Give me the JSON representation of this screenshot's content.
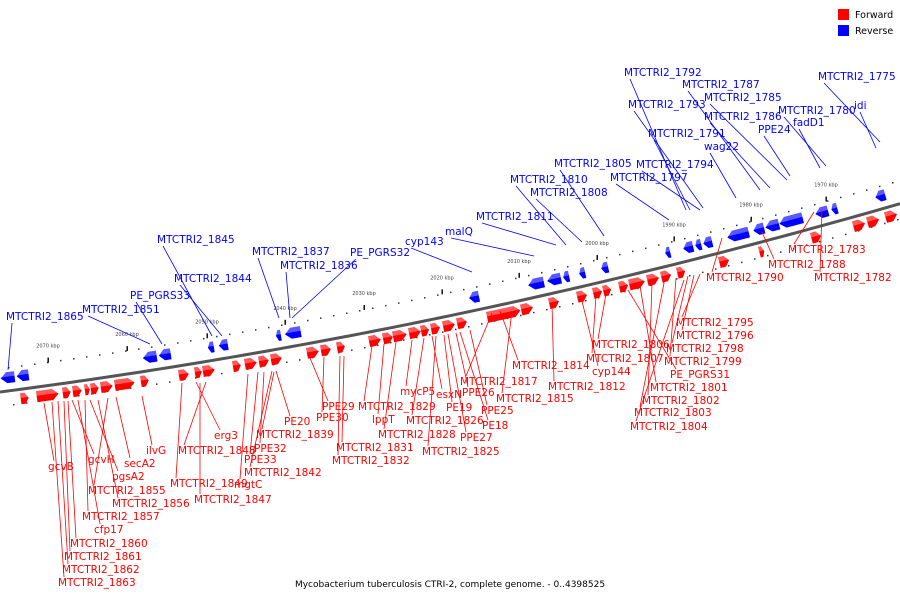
{
  "legend": [
    {
      "label": "Forward",
      "color": "#ff0000"
    },
    {
      "label": "Reverse",
      "color": "#0000ff"
    }
  ],
  "caption": "Mycobacterium tuberculosis CTRI-2, complete genome. - 0..4398525",
  "ticks": [
    "2070 kbp",
    "2060 kbp",
    "2050 kbp",
    "2040 kbp",
    "2030 kbp",
    "2020 kbp",
    "2010 kbp",
    "2000 kbp",
    "1990 kbp",
    "1980 kbp",
    "1970 kbp"
  ],
  "reverse_labels": [
    "MTCTRI2_1865",
    "MTCTRI2_1851",
    "PE_PGRS33",
    "MTCTRI2_1844",
    "MTCTRI2_1845",
    "MTCTRI2_1837",
    "MTCTRI2_1836",
    "PE_PGRS32",
    "cyp143",
    "malQ",
    "MTCTRI2_1811",
    "MTCTRI2_1808",
    "MTCTRI2_1810",
    "MTCTRI2_1805",
    "MTCTRI2_1797",
    "MTCTRI2_1794",
    "wag22",
    "MTCTRI2_1791",
    "MTCTRI2_1793",
    "MTCTRI2_1792",
    "MTCTRI2_1787",
    "MTCTRI2_1786",
    "MTCTRI2_1785",
    "PPE24",
    "fadD1",
    "MTCTRI2_1780",
    "idi",
    "MTCTRI2_1775"
  ],
  "forward_labels": [
    "gcvB",
    "gcvH",
    "pgsA2",
    "secA2",
    "ilvG",
    "MTCTRI2_1855",
    "MTCTRI2_1856",
    "MTCTRI2_1857",
    "cfp17",
    "MTCTRI2_1860",
    "MTCTRI2_1861",
    "MTCTRI2_1862",
    "MTCTRI2_1863",
    "erg3",
    "MTCTRI2_1848",
    "MTCTRI2_1849",
    "MTCTRI2_1847",
    "mgtC",
    "PPE33",
    "MTCTRI2_1842",
    "PPE32",
    "MTCTRI2_1839",
    "PE20",
    "PPE29",
    "PPE30",
    "MTCTRI2_1831",
    "MTCTRI2_1832",
    "MTCTRI2_1829",
    "lppT",
    "MTCTRI2_1828",
    "mycP5",
    "MTCTRI2_1826",
    "esxN",
    "PE19",
    "PPE26",
    "PPE27",
    "MTCTRI2_1825",
    "MTCTRI2_1817",
    "PPE25",
    "PE18",
    "MTCTRI2_1815",
    "MTCTRI2_1814",
    "MTCTRI2_1812",
    "cyp144",
    "MTCTRI2_1807",
    "MTCTRI2_1806",
    "PE_PGRS31",
    "MTCTRI2_1801",
    "MTCTRI2_1802",
    "MTCTRI2_1803",
    "MTCTRI2_1804",
    "MTCTRI2_1799",
    "MTCTRI2_1798",
    "MTCTRI2_1796",
    "MTCTRI2_1795",
    "MTCTRI2_1790",
    "MTCTRI2_1788",
    "MTCTRI2_1783",
    "MTCTRI2_1782"
  ]
}
